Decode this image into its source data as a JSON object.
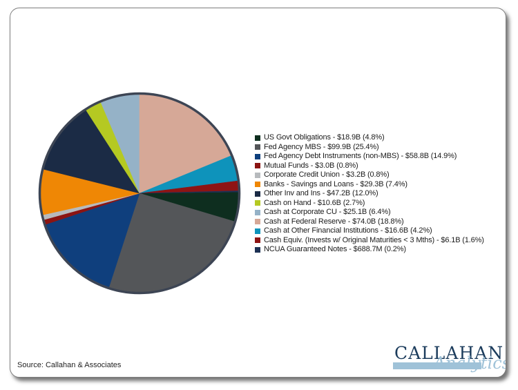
{
  "chart_data": {
    "type": "pie",
    "title": "",
    "legend_position": "right",
    "direction": "clockwise",
    "rotation_deg": 89.28,
    "rim_color": "#3d4554",
    "legend_label_format": "{label} - {value_label} ({pct}%)",
    "slices": [
      {
        "label": "US Govt Obligations",
        "value_label": "$18.9B",
        "value_billions": 18.9,
        "pct": 4.8,
        "color": "#0e2e1f"
      },
      {
        "label": "Fed Agency MBS",
        "value_label": "$99.9B",
        "value_billions": 99.9,
        "pct": 25.4,
        "color": "#545659"
      },
      {
        "label": "Fed Agency Debt Instruments (non-MBS)",
        "value_label": "$58.8B",
        "value_billions": 58.8,
        "pct": 14.9,
        "color": "#0f3f7d"
      },
      {
        "label": "Mutual Funds",
        "value_label": "$3.0B",
        "value_billions": 3.0,
        "pct": 0.8,
        "color": "#8b1412"
      },
      {
        "label": "Corporate Credit Union",
        "value_label": "$3.2B",
        "value_billions": 3.2,
        "pct": 0.8,
        "color": "#b7babd"
      },
      {
        "label": "Banks - Savings and Loans",
        "value_label": "$29.3B",
        "value_billions": 29.3,
        "pct": 7.4,
        "color": "#ef8705"
      },
      {
        "label": "Other Inv and Ins",
        "value_label": "$47.2B",
        "value_billions": 47.2,
        "pct": 12.0,
        "color": "#1b2b45"
      },
      {
        "label": "Cash on Hand",
        "value_label": "$10.6B",
        "value_billions": 10.6,
        "pct": 2.7,
        "color": "#b5c922"
      },
      {
        "label": "Cash at Corporate CU",
        "value_label": "$25.1B",
        "value_billions": 25.1,
        "pct": 6.4,
        "color": "#95b2c7"
      },
      {
        "label": "Cash at Federal Reserve",
        "value_label": "$74.0B",
        "value_billions": 74.0,
        "pct": 18.8,
        "color": "#d6a897"
      },
      {
        "label": "Cash at Other Financial Institutions",
        "value_label": "$16.6B",
        "value_billions": 16.6,
        "pct": 4.2,
        "color": "#0e93bb"
      },
      {
        "label": "Cash Equiv. (Invests w/ Original Maturities < 3 Mths)",
        "value_label": "$6.1B",
        "value_billions": 6.1,
        "pct": 1.6,
        "color": "#8e1414"
      },
      {
        "label": "NCUA Guaranteed Notes",
        "value_label": "$688.7M",
        "value_billions": 0.6887,
        "pct": 0.2,
        "color": "#1d3154"
      }
    ]
  },
  "footer": {
    "source_label": "Source: Callahan & Associates"
  },
  "branding": {
    "wordmark": "CALLAHAN",
    "script": "Analytics",
    "navy": "#1c3c5c",
    "light_blue": "#9fc2d8"
  }
}
